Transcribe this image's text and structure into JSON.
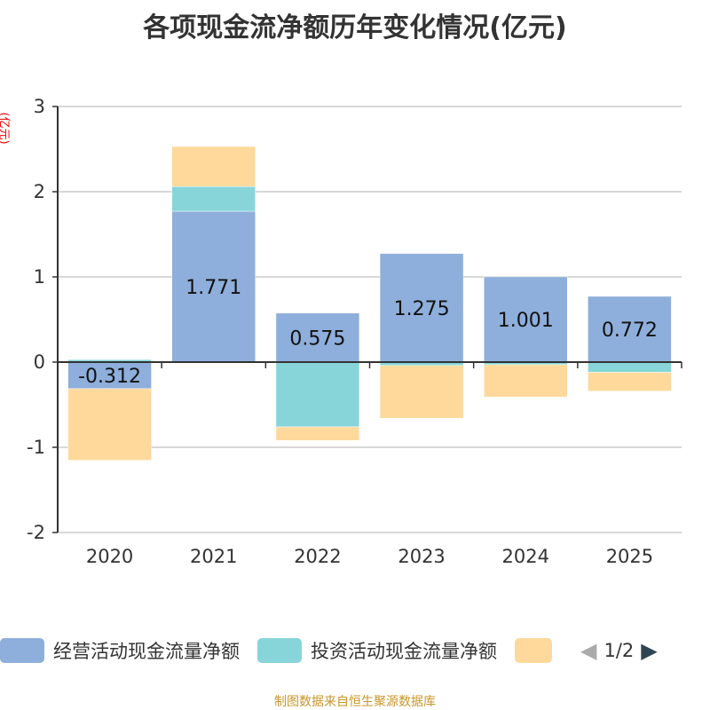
{
  "chart_data": {
    "type": "bar",
    "stacked": true,
    "title": "各项现金流净额历年变化情况(亿元)",
    "ylabel": "(亿元)",
    "categories": [
      "2020",
      "2021",
      "2022",
      "2023",
      "2024",
      "2025"
    ],
    "ylim": [
      -2,
      3
    ],
    "yticks": [
      -2,
      -1,
      0,
      1,
      2,
      3
    ],
    "grid": true,
    "legend_placement": "bottom",
    "series": [
      {
        "name": "经营活动现金流量净额",
        "color": "#8eafdb",
        "values": [
          -0.312,
          1.771,
          0.575,
          1.275,
          1.001,
          0.772
        ],
        "labels": [
          "-0.312",
          "1.771",
          "0.575",
          "1.275",
          "1.001",
          "0.772"
        ]
      },
      {
        "name": "投资活动现金流量净额",
        "color": "#87d5d9",
        "values": [
          0.03,
          0.29,
          -0.76,
          -0.04,
          -0.03,
          -0.12
        ]
      },
      {
        "color": "#fed99b",
        "values": [
          -0.84,
          0.47,
          -0.16,
          -0.62,
          -0.38,
          -0.22
        ]
      }
    ]
  },
  "legend": {
    "page": "1/2"
  },
  "footer": "制图数据来自恒生聚源数据库"
}
